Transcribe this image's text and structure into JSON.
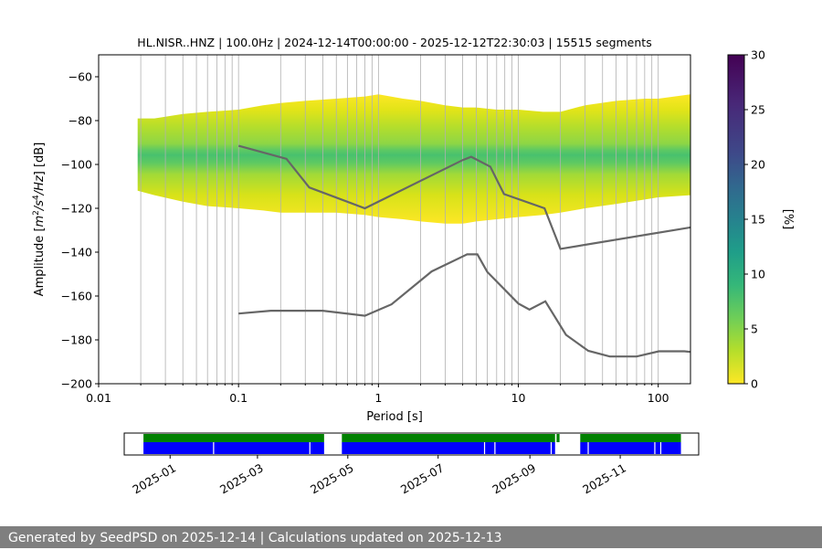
{
  "chart_data": [
    {
      "type": "heatmap",
      "title": "HL.NISR..HNZ | 100.0Hz | 2024-12-14T00:00:00 - 2025-12-12T22:30:03 | 15515 segments",
      "xlabel": "Period [s]",
      "ylabel": "Amplitude [m²/s⁴/Hz] [dB]",
      "xscale": "log",
      "xlim": [
        0.01,
        170
      ],
      "ylim": [
        -200,
        -50
      ],
      "xticks": [
        0.01,
        0.1,
        1,
        10,
        100
      ],
      "xtick_labels": [
        "0.01",
        "0.1",
        "1",
        "10",
        "100"
      ],
      "yticks": [
        -200,
        -180,
        -160,
        -140,
        -120,
        -100,
        -80,
        -60
      ],
      "ytick_labels": [
        "−200",
        "−180",
        "−160",
        "−140",
        "−120",
        "−100",
        "−80",
        "−60"
      ],
      "grid": "vertical",
      "colorbar": {
        "label": "[%]",
        "range": [
          0,
          30
        ],
        "ticks": [
          "0",
          "5",
          "10",
          "15",
          "20",
          "25",
          "30"
        ],
        "colormap": "viridis"
      },
      "psd_band": {
        "period": [
          0.019,
          0.025,
          0.04,
          0.06,
          0.1,
          0.15,
          0.2,
          0.3,
          0.5,
          0.8,
          1,
          1.5,
          2,
          3,
          4,
          5,
          7,
          10,
          15,
          20,
          30,
          50,
          80,
          100,
          170
        ],
        "upper_dB": [
          -79,
          -79,
          -77,
          -76,
          -75,
          -73,
          -72,
          -71,
          -70,
          -69,
          -68,
          -70,
          -71,
          -73,
          -74,
          -74,
          -75,
          -75,
          -76,
          -76,
          -73,
          -71,
          -70,
          -70,
          -68
        ],
        "lower_dB": [
          -112,
          -114,
          -117,
          -119,
          -120,
          -121,
          -122,
          -122,
          -122,
          -123,
          -124,
          -125,
          -126,
          -127,
          -127,
          -126,
          -125,
          -124,
          -123,
          -122,
          -120,
          -118,
          -116,
          -115,
          -114
        ],
        "mode_dB": [
          -100,
          -100,
          -101,
          -101,
          -101,
          -102,
          -102,
          -102,
          -103,
          -104,
          -104,
          -105,
          -104,
          -103,
          -103,
          -102,
          -101,
          -101,
          -100,
          -100,
          -100,
          -100,
          -100,
          -100,
          -100
        ]
      },
      "series": [
        {
          "name": "",
          "x": [
            0.1,
            0.22,
            0.32,
            0.8,
            4,
            4.6,
            6.3,
            7.9,
            15.4,
            20,
            170
          ],
          "y": [
            -91.5,
            -97.4,
            -110.5,
            -120,
            -98,
            -96.5,
            -101,
            -113.5,
            -120,
            -138.5,
            -128.7
          ]
        },
        {
          "name": "",
          "x": [
            0.1,
            0.17,
            0.4,
            0.8,
            1.24,
            2.4,
            4.3,
            5.1,
            6,
            10,
            12,
            15.6,
            21.9,
            31.6,
            45,
            70,
            101,
            154,
            170
          ],
          "y": [
            -168,
            -166.7,
            -166.7,
            -169,
            -163.8,
            -148.8,
            -141,
            -141,
            -149,
            -163.4,
            -166.2,
            -162.4,
            -177.7,
            -185,
            -187.6,
            -187.6,
            -185.2,
            -185.2,
            -185.5
          ]
        }
      ]
    },
    {
      "type": "timeline",
      "xlim": [
        "2024-12-01",
        "2025-12-24"
      ],
      "xtick_labels": [
        "2025-01",
        "2025-03",
        "2025-05",
        "2025-07",
        "2025-09",
        "2025-11"
      ],
      "xtick_dates": [
        "2025-01-01",
        "2025-03-01",
        "2025-05-01",
        "2025-07-01",
        "2025-09-01",
        "2025-11-01"
      ],
      "series": [
        {
          "name": "",
          "color": "#008000",
          "intervals": [
            [
              "2024-12-14",
              "2025-04-15"
            ],
            [
              "2025-04-27",
              "2025-09-18"
            ],
            [
              "2025-09-19",
              "2025-09-21"
            ],
            [
              "2025-10-05",
              "2025-12-12"
            ]
          ]
        },
        {
          "name": "",
          "color": "#0000ff",
          "intervals": [
            [
              "2024-12-14",
              "2025-04-15"
            ],
            [
              "2025-04-27",
              "2025-09-18"
            ],
            [
              "2025-10-05",
              "2025-12-12"
            ]
          ],
          "gaps": [
            "2025-01-30",
            "2025-04-05",
            "2025-08-01",
            "2025-08-08",
            "2025-09-15",
            "2025-10-10",
            "2025-11-24",
            "2025-11-28"
          ]
        }
      ]
    }
  ],
  "footer": {
    "text": "Generated by SeedPSD on 2025-12-14 | Calculations updated on 2025-12-13"
  }
}
